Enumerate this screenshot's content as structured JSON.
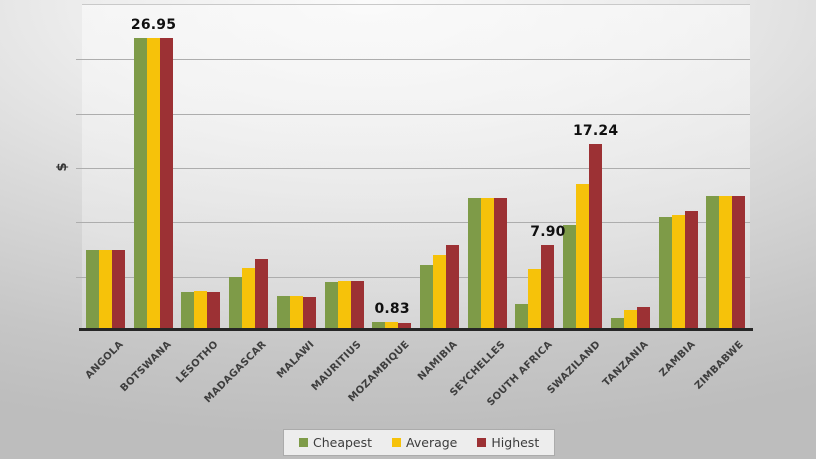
{
  "chart_data": {
    "type": "bar",
    "title": "",
    "xlabel": "",
    "ylabel": "$",
    "ylim": [
      0,
      30
    ],
    "grid_step": 5,
    "grid": true,
    "legend_position": "bottom",
    "categories": [
      "ANGOLA",
      "BOTSWANA",
      "LESOTHO",
      "MADAGASCAR",
      "MALAWI",
      "MAURITIUS",
      "MOZAMBIQUE",
      "NAMIBIA",
      "SEYCHELLES",
      "SOUTH AFRICA",
      "SWAZILAND",
      "TANZANIA",
      "ZAMBIA",
      "ZIMBABWE"
    ],
    "series": [
      {
        "name": "Cheapest",
        "color": "#7E9B48",
        "values": [
          7.5,
          26.95,
          3.6,
          5.0,
          3.2,
          4.5,
          0.83,
          6.1,
          12.2,
          2.5,
          9.8,
          1.2,
          10.5,
          12.4
        ]
      },
      {
        "name": "Average",
        "color": "#F6C20A",
        "values": [
          7.5,
          26.95,
          3.65,
          5.8,
          3.2,
          4.6,
          0.8,
          7.0,
          12.2,
          5.7,
          13.5,
          1.9,
          10.7,
          12.4
        ]
      },
      {
        "name": "Highest",
        "color": "#9C3134",
        "values": [
          7.5,
          26.95,
          3.6,
          6.6,
          3.1,
          4.6,
          0.72,
          7.9,
          12.2,
          7.9,
          17.24,
          2.2,
          11.0,
          12.4
        ]
      }
    ],
    "data_labels": [
      {
        "text": "26.95",
        "category_index": 1,
        "series_index": null
      },
      {
        "text": "0.83",
        "category_index": 6,
        "series_index": null
      },
      {
        "text": "7.90",
        "category_index": 9,
        "series_index": 2
      },
      {
        "text": "17.24",
        "category_index": 10,
        "series_index": 2
      }
    ],
    "colors": {
      "axis_line": "#262626",
      "gridline": "#adadad",
      "tick_label": "#3e3e3e",
      "data_label": "#101010"
    }
  }
}
